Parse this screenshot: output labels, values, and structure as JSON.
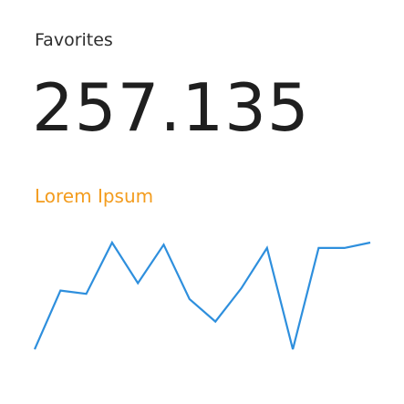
{
  "widget": {
    "title": "Favorites",
    "value": "257.135",
    "subtitle": "Lorem Ipsum"
  },
  "colors": {
    "value_text": "#1f1f1f",
    "subtitle": "#f39c1e",
    "sparkline": "#2e8fdd"
  },
  "chart_data": {
    "type": "line",
    "x": [
      1,
      2,
      3,
      4,
      5,
      6,
      7,
      8,
      9,
      10,
      11,
      12,
      13,
      14
    ],
    "series": [
      {
        "values": [
          0.0,
          0.55,
          0.52,
          1.0,
          0.62,
          0.98,
          0.47,
          0.26,
          0.57,
          0.95,
          0.0,
          0.95,
          0.95,
          1.0
        ]
      }
    ],
    "xlabel": "",
    "ylabel": "",
    "grid": false,
    "legend": "none"
  }
}
